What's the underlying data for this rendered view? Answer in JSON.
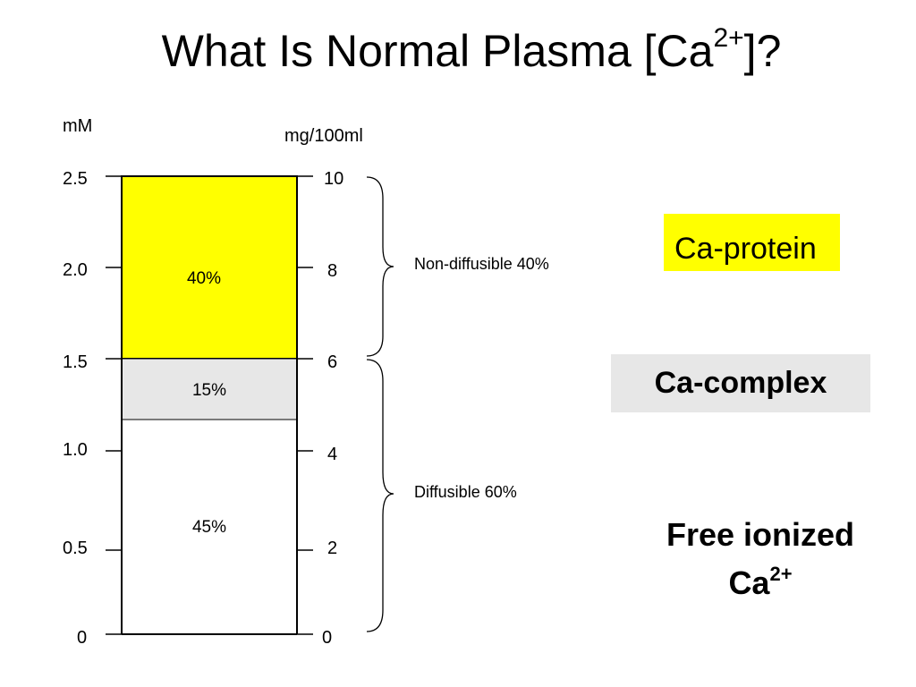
{
  "title": {
    "text": "What Is Normal Plasma [Ca",
    "superscript": "2+",
    "suffix": "]?"
  },
  "axis_left": {
    "unit": "mM",
    "ticks": [
      "2.5",
      "2.0",
      "1.5",
      "1.0",
      "0.5",
      "0"
    ]
  },
  "axis_right": {
    "unit": "mg/100ml",
    "ticks": [
      "10",
      "8",
      "6",
      "4",
      "2",
      "0"
    ]
  },
  "segments": [
    {
      "label": "40%",
      "fraction": 0.4,
      "color": "#ffff00"
    },
    {
      "label": "15%",
      "fraction": 0.15,
      "color": "#e7e7e7"
    },
    {
      "label": "45%",
      "fraction": 0.45,
      "color": "#ffffff"
    }
  ],
  "braces": {
    "upper": "Non-diffusible 40%",
    "lower": "Diffusible 60%"
  },
  "legend": {
    "protein": "Ca-protein",
    "complex": "Ca-complex",
    "free_line1": "Free ionized",
    "free_line2": "Ca",
    "free_sup": "2+"
  }
}
